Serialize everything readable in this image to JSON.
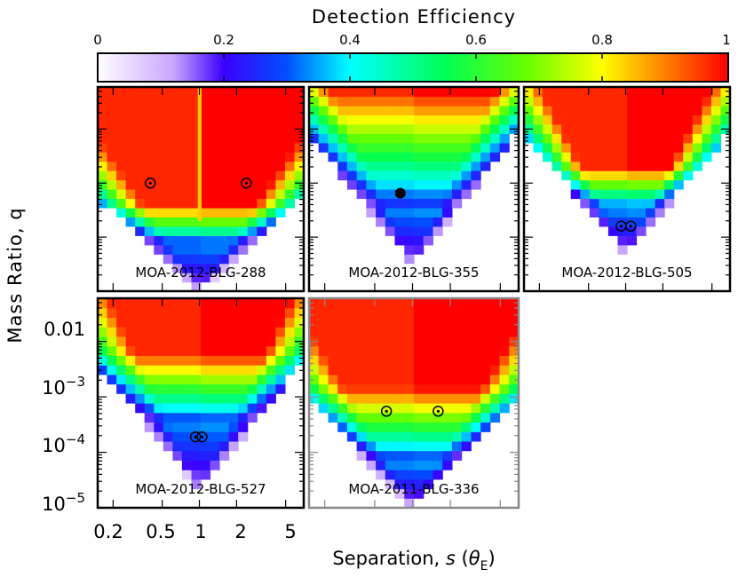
{
  "chart_data": {
    "type": "heatmap",
    "colorbar": {
      "title": "Detection Efficiency",
      "ticks": [
        "0",
        "0.2",
        "0.4",
        "0.6",
        "0.8",
        "1"
      ],
      "range": [
        0,
        1
      ],
      "colormap": [
        "#ffffff",
        "#7a00ff",
        "#0000ff",
        "#00ffff",
        "#00ff00",
        "#ffff00",
        "#ff0000"
      ]
    },
    "xlabel": "Separation, s (θE)",
    "ylabel": "Mass Ratio, q",
    "x_scale": "log",
    "y_scale": "log",
    "xlim": [
      0.15,
      7
    ],
    "ylim": [
      1e-05,
      0.06
    ],
    "x_tick_labels": [
      "0.2",
      "0.5",
      "1",
      "2",
      "5"
    ],
    "y_tick_labels": [
      "0.01",
      "10−3",
      "10−4",
      "10−5"
    ],
    "panels": [
      {
        "name": "MOA-2012-BLG-288",
        "shape": {
          "q_top": 0.06,
          "q_bottom": 1e-05,
          "q_sat": 0.0004,
          "q_blue": 7e-05,
          "spread": 1.35
        },
        "planets": [
          {
            "s": 0.4,
            "q": 0.001,
            "marker": "circled"
          },
          {
            "s": 2.4,
            "q": 0.001,
            "marker": "circled"
          }
        ]
      },
      {
        "name": "MOA-2012-BLG-355",
        "shape": {
          "q_top": 0.06,
          "q_bottom": 3e-05,
          "q_sat": 0.05,
          "q_blue": 0.0003,
          "spread": 0.95
        },
        "planets": [
          {
            "s": 0.8,
            "q": 0.00065,
            "marker": "filled"
          }
        ]
      },
      {
        "name": "MOA-2012-BLG-505",
        "shape": {
          "q_top": 0.06,
          "q_bottom": 5e-05,
          "q_sat": 0.002,
          "q_blue": 0.0003,
          "spread": 1.05
        },
        "planets": [
          {
            "s": 0.92,
            "q": 0.00016,
            "marker": "circled"
          },
          {
            "s": 1.1,
            "q": 0.00016,
            "marker": "circled"
          }
        ]
      },
      {
        "name": "MOA-2012-BLG-527",
        "shape": {
          "q_top": 0.06,
          "q_bottom": 2e-05,
          "q_sat": 0.006,
          "q_blue": 0.0003,
          "spread": 1.0
        },
        "planets": [
          {
            "s": 0.93,
            "q": 0.00019,
            "marker": "circled"
          },
          {
            "s": 1.05,
            "q": 0.00019,
            "marker": "circled"
          }
        ]
      },
      {
        "name": "MOA-2011-BLG-336",
        "shape": {
          "q_top": 0.06,
          "q_bottom": 1e-05,
          "q_sat": 0.0015,
          "q_blue": 6e-05,
          "spread": 1.2
        },
        "planets": [
          {
            "s": 0.62,
            "q": 0.00055,
            "marker": "circled"
          },
          {
            "s": 1.6,
            "q": 0.00055,
            "marker": "circled"
          }
        ]
      }
    ]
  }
}
